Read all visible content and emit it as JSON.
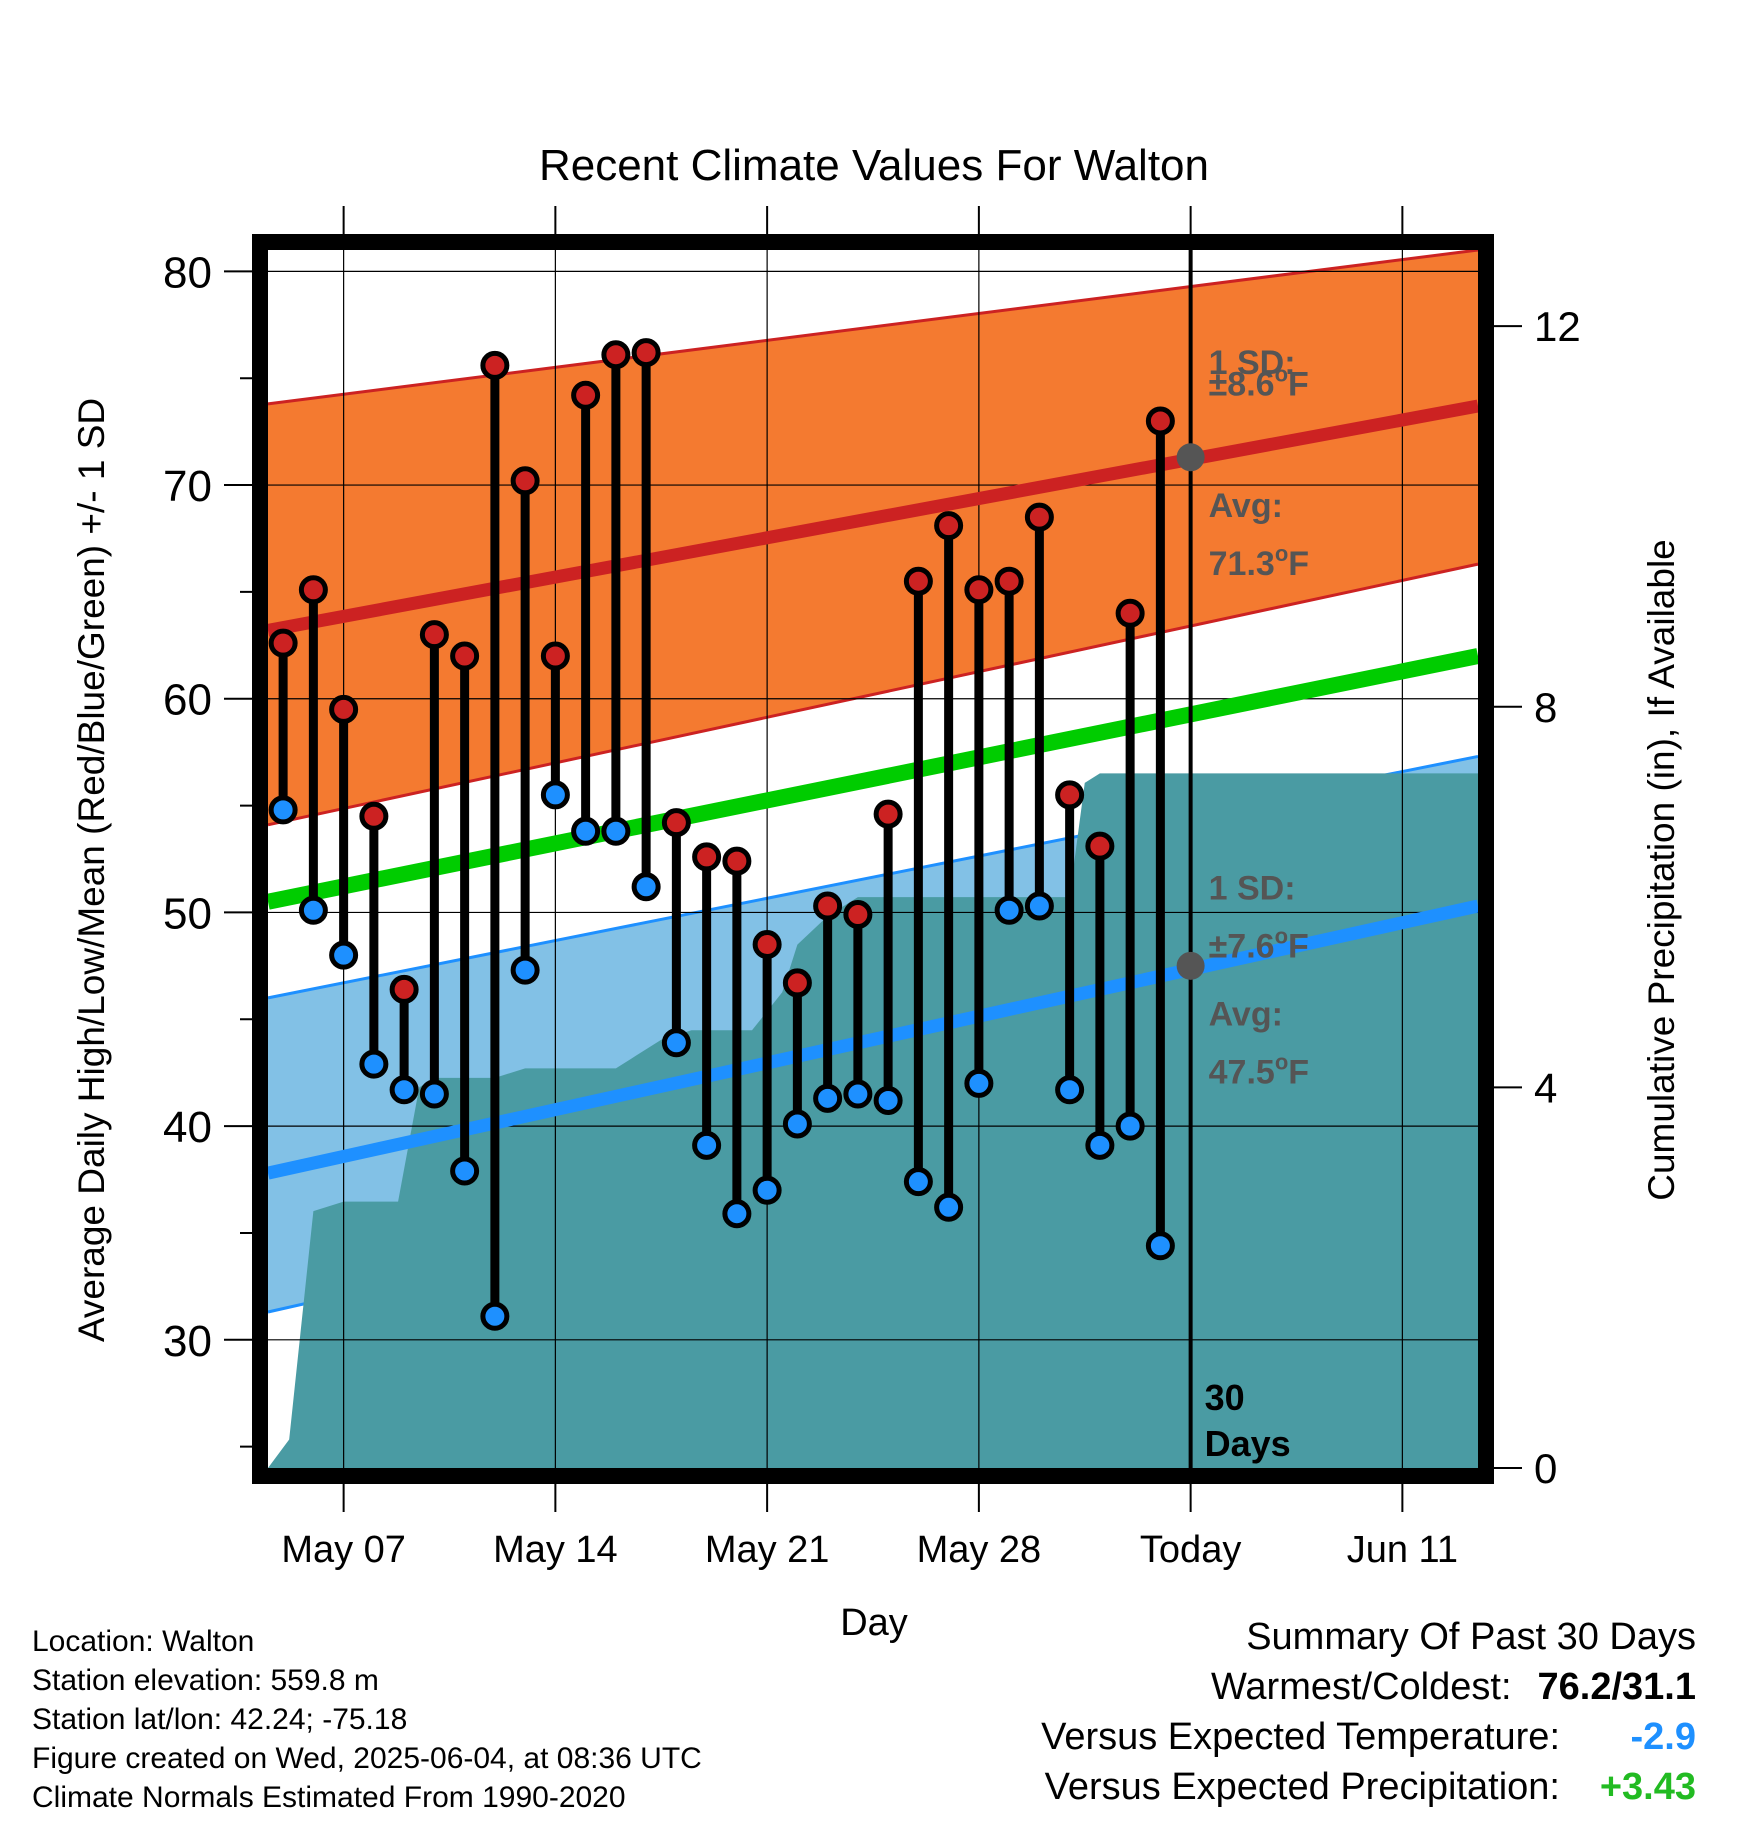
{
  "chart_data": {
    "type": "line",
    "title": "Recent Climate Values For Walton",
    "xlabel": "Day",
    "ylabel": "Average Daily High/Low/Mean (Red/Blue/Green) +/- 1 SD",
    "y2label": "Cumulative Precipitation (in), If Available",
    "x_ticks": [
      {
        "day": 3,
        "label": "May 07"
      },
      {
        "day": 10,
        "label": "May 14"
      },
      {
        "day": 17,
        "label": "May 21"
      },
      {
        "day": 24,
        "label": "May 28"
      },
      {
        "day": 31,
        "label": "Today"
      },
      {
        "day": 38,
        "label": "Jun 11"
      }
    ],
    "xlim": [
      0.5,
      40.5
    ],
    "ylim": [
      24,
      81
    ],
    "y_ticks": [
      30,
      40,
      50,
      60,
      70,
      80
    ],
    "y2lim": [
      0,
      12.8
    ],
    "y2_ticks": [
      0,
      4,
      8,
      12
    ],
    "grid": true,
    "normals": {
      "x": [
        0.5,
        40.5
      ],
      "high_mean": [
        63.2,
        73.7
      ],
      "high_upper": [
        73.8,
        81.0
      ],
      "high_lower": [
        54.1,
        66.3
      ],
      "low_mean": [
        37.8,
        50.3
      ],
      "low_upper": [
        46.0,
        57.3
      ],
      "low_lower": [
        31.3,
        44.1
      ],
      "mean": [
        50.5,
        62.0
      ]
    },
    "annotations": {
      "high_sd_label": "1 SD:",
      "high_sd_value": "±8.6",
      "high_avg_label": "Avg:",
      "high_avg_value": "71.3",
      "low_sd_label": "1 SD:",
      "low_sd_value": "±7.6",
      "low_avg_label": "Avg:",
      "low_avg_value": "47.5",
      "unit_sup": "o",
      "unit_letter": "F",
      "today_days_line1": "30",
      "today_days_line2": "Days",
      "high_avg_today": 71.3,
      "low_avg_today": 47.5
    },
    "series": [
      {
        "name": "High",
        "color": "#cc2222",
        "x": [
          1,
          2,
          3,
          4,
          5,
          6,
          7,
          8,
          9,
          10,
          11,
          12,
          13,
          14,
          15,
          16,
          17,
          18,
          19,
          20,
          21,
          22,
          23,
          24,
          25,
          26,
          27,
          28,
          29,
          30
        ],
        "values": [
          62.6,
          65.1,
          59.5,
          54.5,
          46.4,
          63.0,
          62.0,
          75.6,
          70.2,
          62.0,
          74.2,
          76.1,
          76.2,
          54.2,
          52.6,
          52.4,
          48.5,
          46.7,
          50.3,
          49.9,
          54.6,
          65.5,
          68.1,
          65.1,
          65.5,
          68.5,
          55.5,
          53.1,
          64.0,
          73.0
        ]
      },
      {
        "name": "Low",
        "color": "#1e90ff",
        "x": [
          1,
          2,
          3,
          4,
          5,
          6,
          7,
          8,
          9,
          10,
          11,
          12,
          13,
          14,
          15,
          16,
          17,
          18,
          19,
          20,
          21,
          22,
          23,
          24,
          25,
          26,
          27,
          28,
          29,
          30
        ],
        "values": [
          54.8,
          50.1,
          48.0,
          42.9,
          41.7,
          41.5,
          37.9,
          31.1,
          47.3,
          55.5,
          53.8,
          53.8,
          51.2,
          43.9,
          39.1,
          35.9,
          37.0,
          40.1,
          41.3,
          41.5,
          41.2,
          37.4,
          36.2,
          42.0,
          50.1,
          50.3,
          41.7,
          39.1,
          40.0,
          34.4
        ]
      }
    ],
    "precipitation": {
      "color": "#4a9ba3",
      "x": [
        0.5,
        1.2,
        2.0,
        3.0,
        3.5,
        4.8,
        5.5,
        6.0,
        7.0,
        8.0,
        9.0,
        10.0,
        11.0,
        12.0,
        12.5,
        13.5,
        14.5,
        15.5,
        16.5,
        17.0,
        17.5,
        18.0,
        19.0,
        20.0,
        21.0,
        22.0,
        23.0,
        24.0,
        25.0,
        26.0,
        27.0,
        27.5,
        28.0,
        29.0,
        30.0,
        31.0,
        40.5
      ],
      "values": [
        0,
        0.3,
        2.7,
        2.8,
        2.8,
        2.8,
        4.0,
        4.1,
        4.1,
        4.1,
        4.2,
        4.2,
        4.2,
        4.2,
        4.3,
        4.5,
        4.6,
        4.6,
        4.6,
        4.8,
        5.0,
        5.5,
        5.8,
        6.0,
        6.0,
        6.0,
        6.0,
        6.0,
        6.0,
        6.0,
        6.0,
        7.2,
        7.3,
        7.3,
        7.3,
        7.3,
        7.3
      ]
    },
    "colors": {
      "high_band": "#f47a30",
      "high_line": "#cc2222",
      "low_band": "#82c1e6",
      "low_line": "#1e90ff",
      "mean_line": "#00cc00",
      "annotation": "#555555"
    }
  },
  "footer": {
    "location": "Location: Walton",
    "elevation": "Station elevation: 559.8 m",
    "latlon": "Station lat/lon: 42.24; -75.18",
    "created": "Figure created on Wed, 2025-06-04, at 08:36 UTC",
    "normals": "Climate Normals Estimated From 1990-2020"
  },
  "summary": {
    "heading": "Summary Of Past 30 Days",
    "warm_cold_label": "Warmest/Coldest:",
    "warm_cold_value": "76.2/31.1",
    "temp_label": "Versus Expected Temperature:",
    "temp_value": "-2.9",
    "prcp_label": "Versus Expected Precipitation:",
    "prcp_value": "+3.43"
  }
}
